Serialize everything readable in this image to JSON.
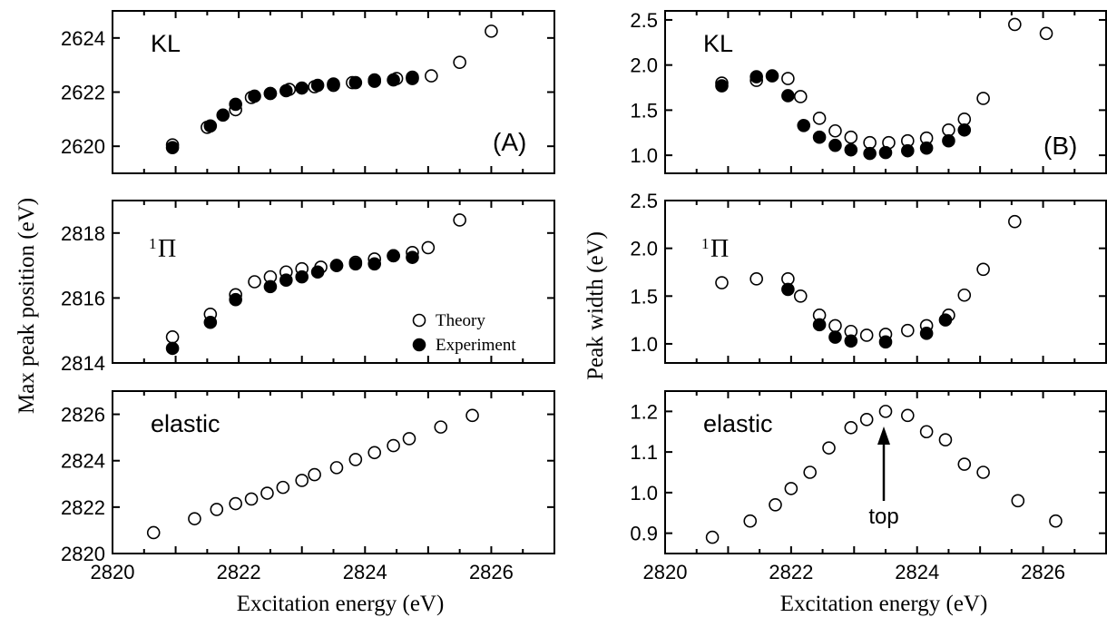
{
  "chart_data": [
    {
      "id": "A-KL",
      "type": "scatter",
      "label": "KL",
      "letter": "(A)",
      "xlim": [
        2820,
        2827
      ],
      "ylim": [
        2619,
        2625
      ],
      "yticks": [
        2620,
        2622,
        2624
      ],
      "series": [
        {
          "name": "Theory",
          "points": [
            [
              2820.95,
              2620.05
            ],
            [
              2821.5,
              2620.7
            ],
            [
              2821.95,
              2621.35
            ],
            [
              2822.2,
              2621.8
            ],
            [
              2822.5,
              2621.95
            ],
            [
              2822.8,
              2622.1
            ],
            [
              2823.2,
              2622.2
            ],
            [
              2823.5,
              2622.25
            ],
            [
              2823.8,
              2622.35
            ],
            [
              2824.15,
              2622.45
            ],
            [
              2824.5,
              2622.5
            ],
            [
              2824.75,
              2622.55
            ],
            [
              2825.05,
              2622.6
            ],
            [
              2825.5,
              2623.1
            ],
            [
              2826.0,
              2624.25
            ]
          ]
        },
        {
          "name": "Experiment",
          "points": [
            [
              2820.95,
              2619.95
            ],
            [
              2821.55,
              2620.75
            ],
            [
              2821.75,
              2621.15
            ],
            [
              2821.95,
              2621.55
            ],
            [
              2822.25,
              2621.85
            ],
            [
              2822.5,
              2621.95
            ],
            [
              2822.75,
              2622.05
            ],
            [
              2823.0,
              2622.15
            ],
            [
              2823.25,
              2622.25
            ],
            [
              2823.5,
              2622.3
            ],
            [
              2823.85,
              2622.35
            ],
            [
              2824.15,
              2622.4
            ],
            [
              2824.45,
              2622.45
            ],
            [
              2824.75,
              2622.5
            ]
          ]
        }
      ]
    },
    {
      "id": "A-Pi",
      "type": "scatter",
      "label_sup": "1",
      "label": "Π",
      "xlim": [
        2820,
        2827
      ],
      "ylim": [
        2814,
        2819
      ],
      "yticks": [
        2814,
        2816,
        2818
      ],
      "series": [
        {
          "name": "Theory",
          "points": [
            [
              2820.95,
              2814.8
            ],
            [
              2821.55,
              2815.5
            ],
            [
              2821.95,
              2816.1
            ],
            [
              2822.25,
              2816.5
            ],
            [
              2822.5,
              2816.65
            ],
            [
              2822.75,
              2816.8
            ],
            [
              2823.0,
              2816.9
            ],
            [
              2823.3,
              2816.95
            ],
            [
              2823.55,
              2817.0
            ],
            [
              2823.85,
              2817.1
            ],
            [
              2824.15,
              2817.2
            ],
            [
              2824.45,
              2817.3
            ],
            [
              2824.75,
              2817.4
            ],
            [
              2825.0,
              2817.55
            ],
            [
              2825.5,
              2818.4
            ]
          ]
        },
        {
          "name": "Experiment",
          "points": [
            [
              2820.95,
              2814.45
            ],
            [
              2821.55,
              2815.25
            ],
            [
              2821.95,
              2815.95
            ],
            [
              2822.5,
              2816.35
            ],
            [
              2822.75,
              2816.55
            ],
            [
              2823.0,
              2816.65
            ],
            [
              2823.25,
              2816.8
            ],
            [
              2823.55,
              2817.0
            ],
            [
              2823.85,
              2817.05
            ],
            [
              2824.15,
              2817.05
            ],
            [
              2824.45,
              2817.3
            ],
            [
              2824.75,
              2817.25
            ]
          ]
        }
      ],
      "legend": {
        "position": "lower-right",
        "entries": [
          "Theory",
          "Experiment"
        ]
      }
    },
    {
      "id": "A-elastic",
      "type": "scatter",
      "label": "elastic",
      "xlim": [
        2820,
        2827
      ],
      "ylim": [
        2820,
        2827
      ],
      "yticks": [
        2820,
        2822,
        2824,
        2826
      ],
      "xticks": [
        2820,
        2822,
        2824,
        2826
      ],
      "xlabel": "Excitation energy (eV)",
      "series": [
        {
          "name": "Theory",
          "points": [
            [
              2820.65,
              2820.9
            ],
            [
              2821.3,
              2821.5
            ],
            [
              2821.65,
              2821.9
            ],
            [
              2821.95,
              2822.15
            ],
            [
              2822.2,
              2822.35
            ],
            [
              2822.45,
              2822.6
            ],
            [
              2822.7,
              2822.85
            ],
            [
              2823.0,
              2823.15
            ],
            [
              2823.2,
              2823.4
            ],
            [
              2823.55,
              2823.7
            ],
            [
              2823.85,
              2824.05
            ],
            [
              2824.15,
              2824.35
            ],
            [
              2824.45,
              2824.65
            ],
            [
              2824.7,
              2824.95
            ],
            [
              2825.2,
              2825.45
            ],
            [
              2825.7,
              2825.95
            ]
          ]
        }
      ]
    },
    {
      "id": "B-KL",
      "type": "scatter",
      "label": "KL",
      "letter": "(B)",
      "xlim": [
        2820,
        2827
      ],
      "ylim": [
        0.8,
        2.6
      ],
      "yticks": [
        1.0,
        1.5,
        2.0,
        2.5
      ],
      "series": [
        {
          "name": "Theory",
          "points": [
            [
              2820.9,
              1.8
            ],
            [
              2821.45,
              1.83
            ],
            [
              2821.95,
              1.85
            ],
            [
              2822.15,
              1.65
            ],
            [
              2822.45,
              1.41
            ],
            [
              2822.7,
              1.27
            ],
            [
              2822.95,
              1.2
            ],
            [
              2823.25,
              1.14
            ],
            [
              2823.55,
              1.14
            ],
            [
              2823.85,
              1.16
            ],
            [
              2824.15,
              1.19
            ],
            [
              2824.5,
              1.28
            ],
            [
              2824.75,
              1.4
            ],
            [
              2825.05,
              1.63
            ],
            [
              2825.55,
              2.45
            ],
            [
              2826.05,
              2.35
            ]
          ]
        },
        {
          "name": "Experiment",
          "points": [
            [
              2820.9,
              1.77
            ],
            [
              2821.45,
              1.87
            ],
            [
              2821.7,
              1.88
            ],
            [
              2821.95,
              1.66
            ],
            [
              2822.2,
              1.33
            ],
            [
              2822.45,
              1.2
            ],
            [
              2822.7,
              1.11
            ],
            [
              2822.95,
              1.06
            ],
            [
              2823.25,
              1.02
            ],
            [
              2823.5,
              1.03
            ],
            [
              2823.85,
              1.05
            ],
            [
              2824.15,
              1.08
            ],
            [
              2824.5,
              1.16
            ],
            [
              2824.75,
              1.28
            ]
          ]
        }
      ]
    },
    {
      "id": "B-Pi",
      "type": "scatter",
      "label_sup": "1",
      "label": "Π",
      "xlim": [
        2820,
        2827
      ],
      "ylim": [
        0.8,
        2.5
      ],
      "yticks": [
        1.0,
        1.5,
        2.0,
        2.5
      ],
      "series": [
        {
          "name": "Theory",
          "points": [
            [
              2820.9,
              1.64
            ],
            [
              2821.45,
              1.68
            ],
            [
              2821.95,
              1.68
            ],
            [
              2822.15,
              1.5
            ],
            [
              2822.45,
              1.3
            ],
            [
              2822.7,
              1.19
            ],
            [
              2822.95,
              1.13
            ],
            [
              2823.2,
              1.09
            ],
            [
              2823.5,
              1.1
            ],
            [
              2823.85,
              1.14
            ],
            [
              2824.15,
              1.19
            ],
            [
              2824.5,
              1.3
            ],
            [
              2824.75,
              1.51
            ],
            [
              2825.05,
              1.78
            ],
            [
              2825.55,
              2.28
            ]
          ]
        },
        {
          "name": "Experiment",
          "points": [
            [
              2821.95,
              1.57
            ],
            [
              2822.45,
              1.2
            ],
            [
              2822.7,
              1.07
            ],
            [
              2822.95,
              1.03
            ],
            [
              2823.5,
              1.02
            ],
            [
              2824.15,
              1.11
            ],
            [
              2824.45,
              1.25
            ]
          ]
        }
      ]
    },
    {
      "id": "B-elastic",
      "type": "scatter",
      "label": "elastic",
      "xlim": [
        2820,
        2827
      ],
      "ylim": [
        0.85,
        1.25
      ],
      "yticks": [
        0.9,
        1.0,
        1.1,
        1.2
      ],
      "xticks": [
        2820,
        2822,
        2824,
        2826
      ],
      "xlabel": "Excitation energy (eV)",
      "annotation": {
        "text": "top",
        "x": 2823.5,
        "y": 1.2
      },
      "series": [
        {
          "name": "Theory",
          "points": [
            [
              2820.75,
              0.89
            ],
            [
              2821.35,
              0.93
            ],
            [
              2821.75,
              0.97
            ],
            [
              2822.0,
              1.01
            ],
            [
              2822.3,
              1.05
            ],
            [
              2822.6,
              1.11
            ],
            [
              2822.95,
              1.16
            ],
            [
              2823.2,
              1.18
            ],
            [
              2823.5,
              1.2
            ],
            [
              2823.85,
              1.19
            ],
            [
              2824.15,
              1.15
            ],
            [
              2824.45,
              1.13
            ],
            [
              2824.75,
              1.07
            ],
            [
              2825.05,
              1.05
            ],
            [
              2825.6,
              0.98
            ],
            [
              2826.2,
              0.93
            ]
          ]
        }
      ]
    }
  ],
  "labels": {
    "left_ylabel": "Max peak position (eV)",
    "right_ylabel": "Peak width (eV)",
    "xlabel": "Excitation energy (eV)",
    "legend_theory": "Theory",
    "legend_experiment": "Experiment",
    "letter_a": "(A)",
    "letter_b": "(B)",
    "annotation": "top"
  }
}
